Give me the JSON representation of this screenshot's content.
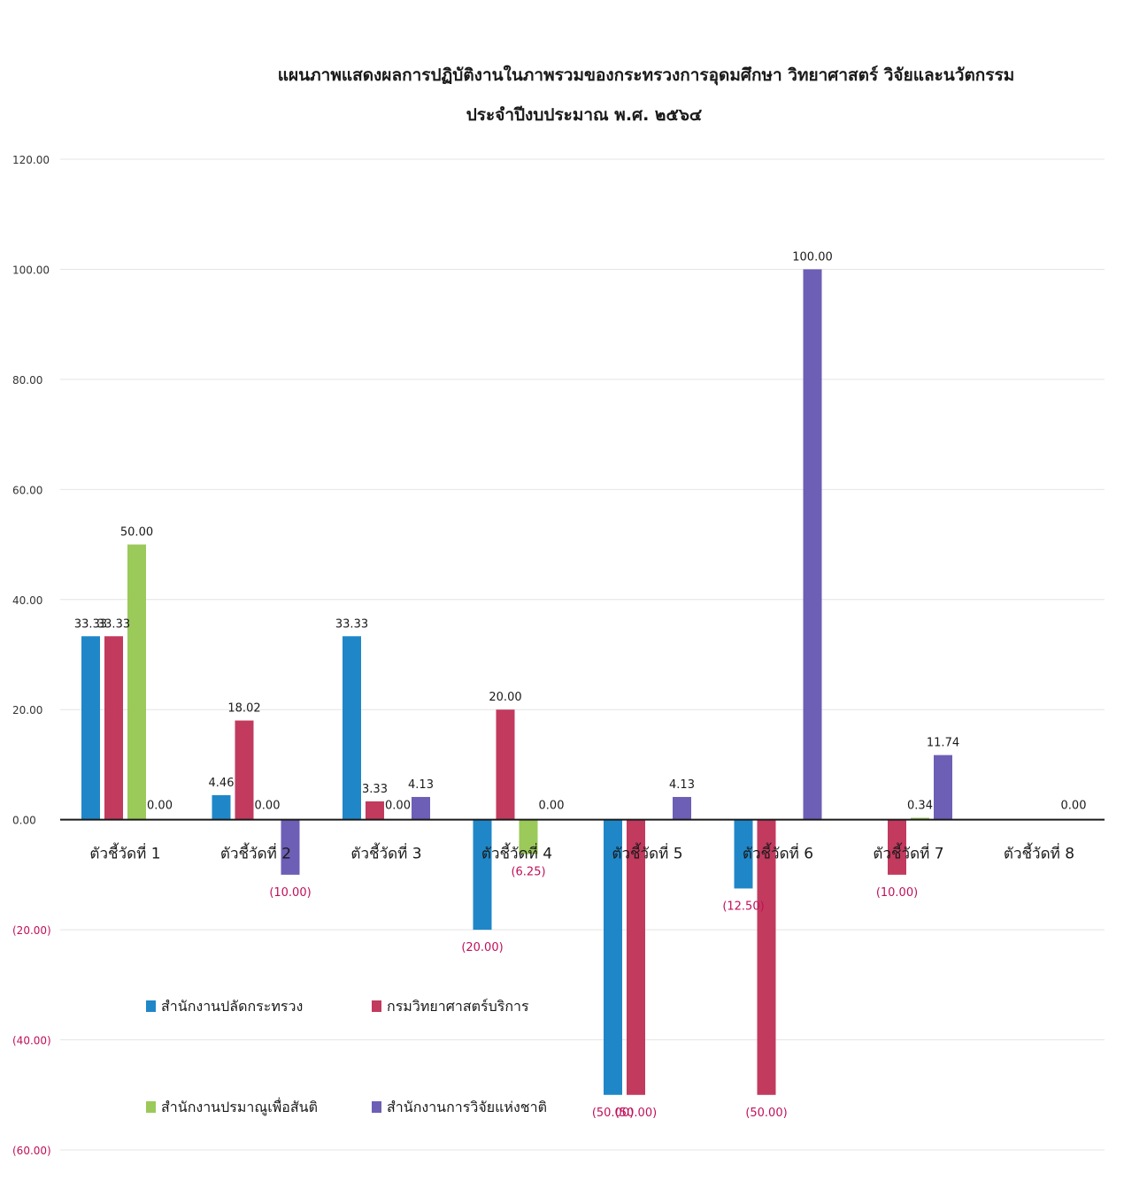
{
  "chart_data": {
    "type": "bar",
    "title": "แผนภาพแสดงผลการปฏิบัติงานในภาพรวมของกระทรวงการอุดมศึกษา วิทยาศาสตร์ วิจัยและนวัตกรรม",
    "subtitle": "ประจำปีงบประมาณ พ.ศ. ๒๕๖๔",
    "categories": [
      "ตัวชี้วัดที่ 1",
      "ตัวชี้วัดที่ 2",
      "ตัวชี้วัดที่ 3",
      "ตัวชี้วัดที่ 4",
      "ตัวชี้วัดที่ 5",
      "ตัวชี้วัดที่ 6",
      "ตัวชี้วัดที่ 7",
      "ตัวชี้วัดที่ 8"
    ],
    "series": [
      {
        "name": "สำนักงานปลัดกระทรวง",
        "color": "#1f87c8",
        "values": [
          33.33,
          4.46,
          33.33,
          -20.0,
          -50.0,
          -12.5,
          null,
          null
        ],
        "labels": [
          "33.33",
          "4.46",
          "33.33",
          "(20.00)",
          "(50.00)",
          "(12.50)",
          "",
          ""
        ]
      },
      {
        "name": "กรมวิทยาศาสตร์บริการ",
        "color": "#c23a5e",
        "values": [
          33.33,
          18.02,
          3.33,
          20.0,
          -50.0,
          -50.0,
          -10.0,
          null
        ],
        "labels": [
          "33.33",
          "18.02",
          "3.33",
          "20.00",
          "(50.00)",
          "(50.00)",
          "(10.00)",
          ""
        ]
      },
      {
        "name": "สำนักงานปรมาณูเพื่อสันติ",
        "color": "#9bc95a",
        "values": [
          50.0,
          0.0,
          0.0,
          -6.25,
          null,
          null,
          0.34,
          null
        ],
        "labels": [
          "50.00",
          "0.00",
          "0.00",
          "(6.25)",
          "",
          "",
          "0.34",
          ""
        ]
      },
      {
        "name": "สำนักงานการวิจัยแห่งชาติ",
        "color": "#6c5fb5",
        "values": [
          0.0,
          -10.0,
          4.13,
          0.0,
          4.13,
          100.0,
          11.74,
          0.0
        ],
        "labels": [
          "0.00",
          "(10.00)",
          "4.13",
          "0.00",
          "4.13",
          "100.00",
          "11.74",
          "0.00"
        ]
      }
    ],
    "yticks": [
      "120.00",
      "100.00",
      "80.00",
      "60.00",
      "40.00",
      "20.00",
      "0.00",
      "(20.00)",
      "(40.00)",
      "(60.00)"
    ],
    "ytick_values": [
      120,
      100,
      80,
      60,
      40,
      20,
      0,
      -20,
      -40,
      -60
    ],
    "ylim": [
      -60,
      120
    ],
    "grid": true,
    "legend_position": "bottom-left inside plot",
    "positive_label_color": "#1a1a1a",
    "negative_label_color": "#c0105a",
    "positive_tick_color": "#333333",
    "negative_tick_color": "#c0105a"
  }
}
